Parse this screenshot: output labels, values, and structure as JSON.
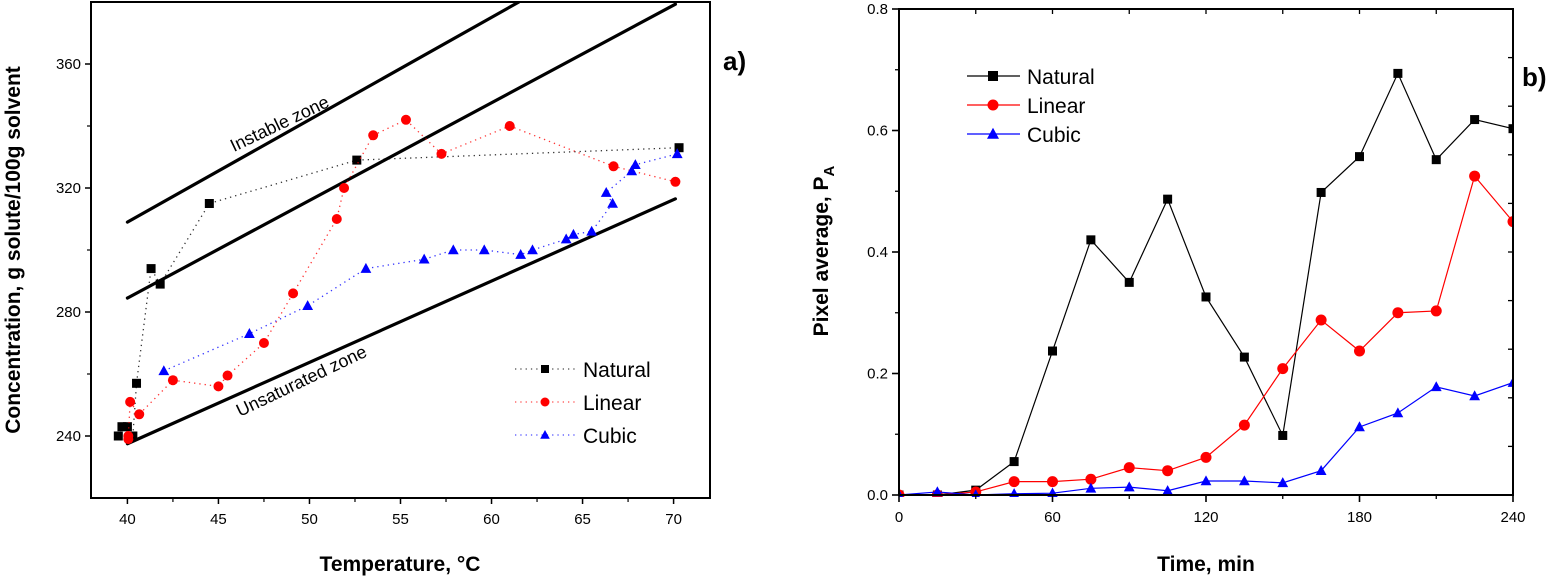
{
  "chart_data": [
    {
      "id": "a",
      "type": "scatter",
      "panel_label": "a)",
      "xlabel": "Temperature, °C",
      "ylabel": "Concentration, g solute/100g solvent",
      "xlim": [
        38,
        72
      ],
      "ylim": [
        220,
        380
      ],
      "xticks": [
        40,
        45,
        50,
        55,
        60,
        65,
        70
      ],
      "yticks": [
        240,
        280,
        320,
        360
      ],
      "x_minor_step": 2.5,
      "y_minor_step": 20,
      "grid": false,
      "legend_position": "bottom-right",
      "line_style": "dotted",
      "series": [
        {
          "name": "Natural",
          "color": "#000000",
          "marker": "square",
          "points": [
            [
              39.5,
              240
            ],
            [
              39.7,
              243
            ],
            [
              40.0,
              243
            ],
            [
              40.3,
              240
            ],
            [
              40.5,
              257
            ],
            [
              41.3,
              294
            ],
            [
              41.8,
              289
            ],
            [
              44.5,
              315
            ],
            [
              52.6,
              329
            ],
            [
              70.3,
              333
            ]
          ]
        },
        {
          "name": "Linear",
          "color": "#ff0000",
          "marker": "circle",
          "points": [
            [
              40.05,
              239
            ],
            [
              40.05,
              240
            ],
            [
              40.15,
              251
            ],
            [
              40.65,
              247
            ],
            [
              42.5,
              258
            ],
            [
              45.0,
              256
            ],
            [
              45.5,
              259.5
            ],
            [
              47.5,
              270
            ],
            [
              49.1,
              286
            ],
            [
              51.5,
              310
            ],
            [
              51.9,
              320
            ],
            [
              53.5,
              337
            ],
            [
              55.3,
              342
            ],
            [
              57.25,
              331
            ],
            [
              61.0,
              340
            ],
            [
              66.7,
              327
            ],
            [
              70.1,
              322
            ]
          ]
        },
        {
          "name": "Cubic",
          "color": "#0000ff",
          "marker": "triangle",
          "points": [
            [
              42.0,
              261
            ],
            [
              46.7,
              273
            ],
            [
              49.9,
              282
            ],
            [
              53.1,
              294
            ],
            [
              56.3,
              297
            ],
            [
              57.9,
              300
            ],
            [
              59.6,
              300
            ],
            [
              61.6,
              298.5
            ],
            [
              62.25,
              300
            ],
            [
              64.1,
              303.5
            ],
            [
              64.5,
              305
            ],
            [
              65.5,
              306
            ],
            [
              66.65,
              315
            ],
            [
              66.3,
              318.5
            ],
            [
              67.7,
              325.5
            ],
            [
              67.9,
              327.5
            ],
            [
              70.2,
              331
            ]
          ]
        }
      ],
      "reference_lines": [
        {
          "name": "instable-boundary",
          "points": [
            [
              40,
              309
            ],
            [
              61.5,
              380
            ]
          ]
        },
        {
          "name": "metastable-boundary",
          "points": [
            [
              40,
              284.5
            ],
            [
              70.1,
              379.3
            ]
          ]
        },
        {
          "name": "solubility-curve",
          "points": [
            [
              40,
              237.5
            ],
            [
              70.1,
              316.5
            ]
          ]
        }
      ],
      "annotations": [
        {
          "text": "Instable zone",
          "at": [
            48.5,
            339
          ]
        },
        {
          "text": "Unsaturated zone",
          "at": [
            49.7,
            256
          ]
        }
      ]
    },
    {
      "id": "b",
      "type": "line",
      "panel_label": "b)",
      "xlabel": "Time, min",
      "ylabel": "Pixel average, P",
      "ylabel_subscript": "A",
      "xlim": [
        0,
        240
      ],
      "ylim": [
        0,
        0.8
      ],
      "xticks": [
        0,
        60,
        120,
        180,
        240
      ],
      "yticks": [
        0.0,
        0.2,
        0.4,
        0.6,
        0.8
      ],
      "ytick_labels": [
        "0.0",
        "0.2",
        "0.4",
        "0.6",
        "0.8"
      ],
      "x_minor_step": 30,
      "y_minor_step": 0.1,
      "right_axis_tick_step": 0.08,
      "grid": false,
      "legend_position": "top-left",
      "line_style": "solid",
      "x": [
        0,
        15,
        30,
        45,
        60,
        75,
        90,
        105,
        120,
        135,
        150,
        165,
        180,
        195,
        210,
        225,
        240
      ],
      "series": [
        {
          "name": "Natural",
          "color": "#000000",
          "marker": "square",
          "values": [
            0.0,
            0.0,
            0.008,
            0.055,
            0.237,
            0.42,
            0.35,
            0.487,
            0.326,
            0.227,
            0.098,
            0.498,
            0.557,
            0.694,
            0.552,
            0.618,
            0.603
          ]
        },
        {
          "name": "Linear",
          "color": "#ff0000",
          "marker": "circle",
          "values": [
            0.0,
            0.0,
            0.005,
            0.022,
            0.022,
            0.026,
            0.045,
            0.04,
            0.062,
            0.115,
            0.208,
            0.288,
            0.237,
            0.3,
            0.303,
            0.525,
            0.45
          ]
        },
        {
          "name": "Cubic",
          "color": "#0000ff",
          "marker": "triangle",
          "values": [
            0.0,
            0.005,
            0.0,
            0.002,
            0.003,
            0.011,
            0.013,
            0.007,
            0.023,
            0.023,
            0.02,
            0.04,
            0.112,
            0.135,
            0.178,
            0.163,
            0.185
          ]
        }
      ]
    }
  ]
}
